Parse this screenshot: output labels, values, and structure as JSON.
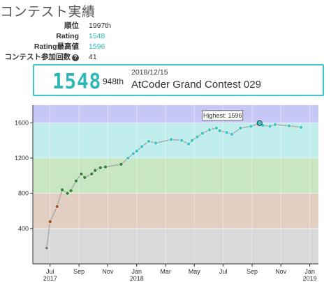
{
  "page": {
    "heading": "コンテスト実績"
  },
  "stats": {
    "rank_label": "順位",
    "rank_value": "1997th",
    "rating_label": "Rating",
    "rating_value": "1548",
    "highest_label": "Rating最高値",
    "highest_value": "1596",
    "count_label": "コンテスト参加回数",
    "count_value": "41",
    "help_glyph": "?"
  },
  "contest": {
    "rating": "1548",
    "rank": "948th",
    "date": "2018/12/15",
    "name": "AtCoder Grand Contest 029"
  },
  "colors": {
    "card_border": "#3cc6c9",
    "rating_cyan": "#2cb8b8",
    "band_gray": "#d9d9d9",
    "band_brown": "#e3cfc2",
    "band_green": "#c9e6c3",
    "band_cyan": "#c2eded",
    "band_blue": "#c7c7f5",
    "line": "#aaaaaa"
  },
  "chart_data": {
    "type": "line",
    "ylim": [
      0,
      1800
    ],
    "yticks": [
      "400",
      "800",
      "1200",
      "1600"
    ],
    "ytick_values": [
      400,
      800,
      1200,
      1600
    ],
    "bands": [
      {
        "from": 0,
        "to": 400,
        "color": "#d9d9d9"
      },
      {
        "from": 400,
        "to": 800,
        "color": "#e3cfc2"
      },
      {
        "from": 800,
        "to": 1200,
        "color": "#c9e6c3"
      },
      {
        "from": 1200,
        "to": 1600,
        "color": "#c2eded"
      },
      {
        "from": 1600,
        "to": 1800,
        "color": "#c7c7f5"
      }
    ],
    "xlim": [
      2017.4,
      2019.05
    ],
    "xticks": [
      {
        "value": 2017.5,
        "label": "Jul",
        "year": "2017"
      },
      {
        "value": 2017.667,
        "label": "Sep",
        "year": ""
      },
      {
        "value": 2017.833,
        "label": "Nov",
        "year": ""
      },
      {
        "value": 2018.0,
        "label": "Jan",
        "year": "2018"
      },
      {
        "value": 2018.167,
        "label": "Mar",
        "year": ""
      },
      {
        "value": 2018.333,
        "label": "May",
        "year": ""
      },
      {
        "value": 2018.5,
        "label": "Jul",
        "year": ""
      },
      {
        "value": 2018.667,
        "label": "Sep",
        "year": ""
      },
      {
        "value": 2018.833,
        "label": "Nov",
        "year": ""
      },
      {
        "value": 2019.0,
        "label": "Jan",
        "year": "2019"
      }
    ],
    "series": [
      {
        "x": [
          2017.48,
          2017.5,
          2017.54,
          2017.57,
          2017.6,
          2017.62,
          2017.65,
          2017.68,
          2017.7,
          2017.74,
          2017.76,
          2017.79,
          2017.82,
          2017.91,
          2017.95,
          2017.98,
          2018.0,
          2018.03,
          2018.07,
          2018.11,
          2018.2,
          2018.26,
          2018.3,
          2018.32,
          2018.35,
          2018.38,
          2018.42,
          2018.46,
          2018.48,
          2018.52,
          2018.55,
          2018.6,
          2018.66,
          2018.71,
          2018.73,
          2018.77,
          2018.8,
          2018.88,
          2018.95
        ],
        "y": [
          180,
          480,
          650,
          840,
          800,
          830,
          940,
          1020,
          980,
          1020,
          1060,
          1090,
          1100,
          1130,
          1200,
          1250,
          1280,
          1330,
          1390,
          1370,
          1410,
          1400,
          1360,
          1400,
          1440,
          1480,
          1520,
          1540,
          1510,
          1490,
          1470,
          1540,
          1560,
          1596,
          1570,
          1560,
          1580,
          1565,
          1548
        ]
      }
    ],
    "highest_label": "Highest: 1596",
    "highest_point": {
      "x": 2018.71,
      "y": 1596
    }
  }
}
